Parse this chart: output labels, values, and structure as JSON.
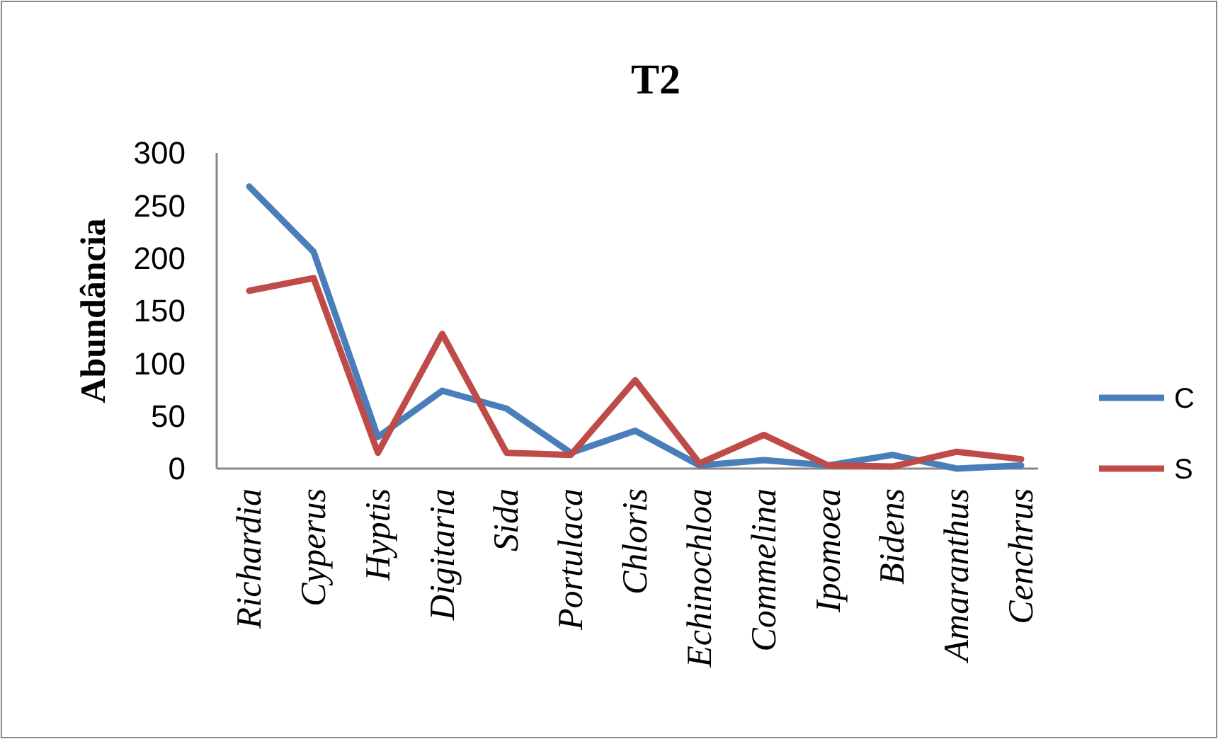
{
  "chart_data": {
    "type": "line",
    "title": "T2",
    "ylabel": "Abundância",
    "categories": [
      "Richardia",
      "Cyperus",
      "Hyptis",
      "Digitaria",
      "Sida",
      "Portulaca",
      "Chloris",
      "Echinochloa",
      "Commelina",
      "Ipomoea",
      "Bidens",
      "Amaranthus",
      "Cenchrus"
    ],
    "series": [
      {
        "name": "C",
        "color": "#4a7ebb",
        "values": [
          268,
          206,
          30,
          74,
          57,
          15,
          36,
          3,
          8,
          3,
          13,
          0,
          3
        ]
      },
      {
        "name": "S",
        "color": "#be4b48",
        "values": [
          169,
          181,
          15,
          128,
          15,
          13,
          84,
          5,
          32,
          3,
          2,
          16,
          9
        ]
      }
    ],
    "ylim": [
      0,
      300
    ],
    "yticks": [
      0,
      50,
      100,
      150,
      200,
      250,
      300
    ],
    "grid": false,
    "legend": "right",
    "marker": "none",
    "line_style": "solid"
  }
}
